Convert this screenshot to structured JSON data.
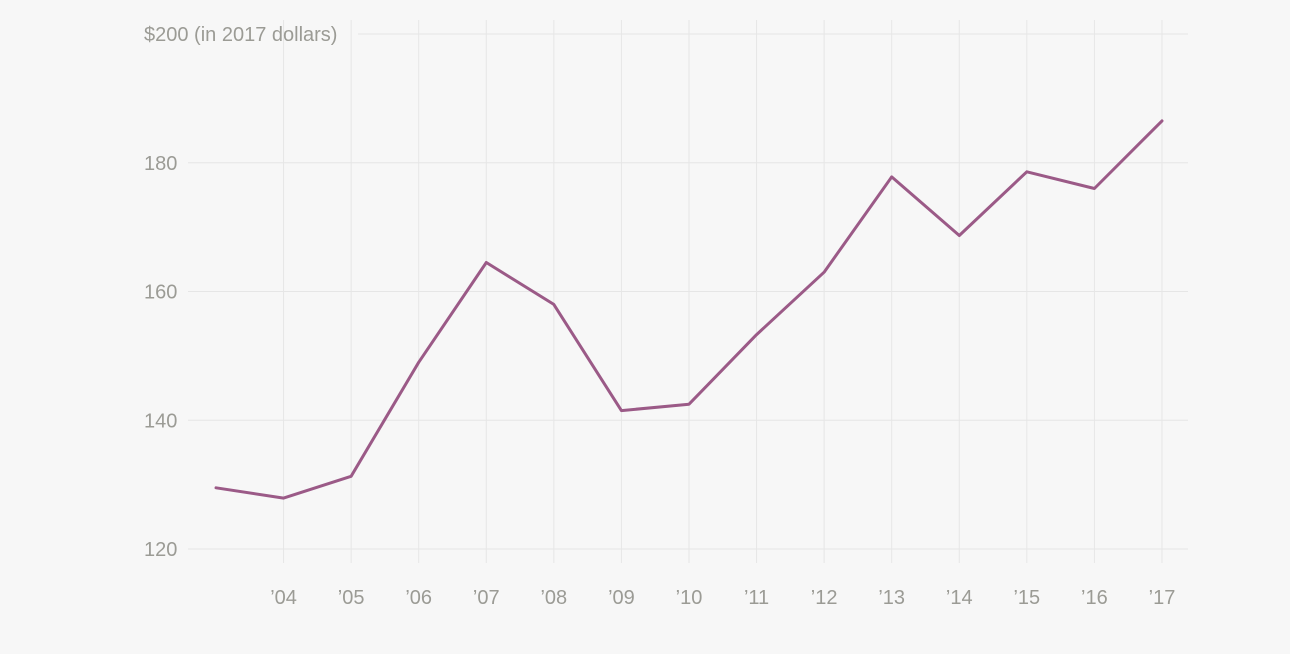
{
  "chart_data": {
    "type": "line",
    "x": [
      "2003",
      "2004",
      "2005",
      "2006",
      "2007",
      "2008",
      "2009",
      "2010",
      "2011",
      "2012",
      "2013",
      "2014",
      "2015",
      "2016",
      "2017"
    ],
    "xtick_labels": [
      "",
      "’04",
      "’05",
      "’06",
      "’07",
      "’08",
      "’09",
      "’10",
      "’11",
      "’12",
      "’13",
      "’14",
      "’15",
      "’16",
      "’17"
    ],
    "series": [
      {
        "color": "#9b5a87",
        "values": [
          129.5,
          127.9,
          131.3,
          149.0,
          164.5,
          158.0,
          141.5,
          142.5,
          153.3,
          163.0,
          177.8,
          168.7,
          178.6,
          176.0,
          186.5
        ]
      }
    ],
    "yticks": [
      120,
      140,
      160,
      180,
      200
    ],
    "ytick_labels": [
      "120",
      "140",
      "160",
      "180",
      "$200 (in 2017 dollars)"
    ],
    "ylim": [
      120,
      200
    ],
    "grid": true,
    "title": "",
    "xlabel": "",
    "ylabel": ""
  }
}
